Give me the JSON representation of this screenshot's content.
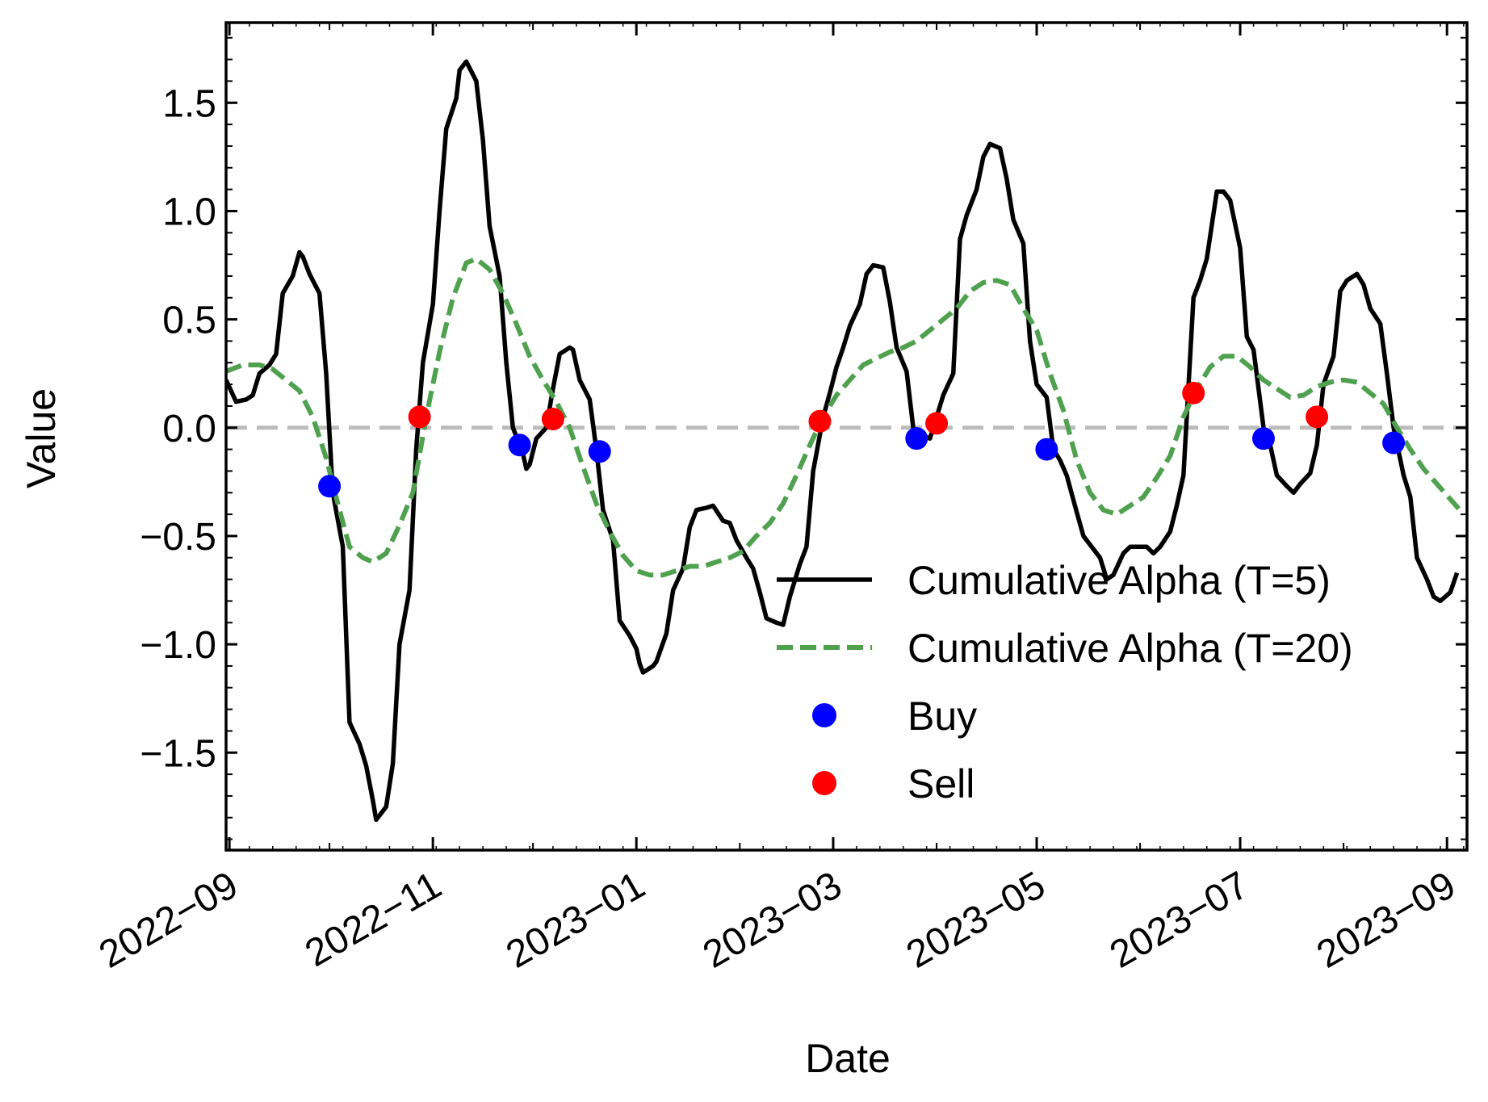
{
  "chart_data": {
    "type": "line",
    "xlabel": "Date",
    "ylabel": "Value",
    "xlim": [
      "2022-08-31",
      "2023-09-07"
    ],
    "ylim": [
      -1.95,
      1.87
    ],
    "x_ticks": [
      "2022-09",
      "2022-11",
      "2023-01",
      "2023-03",
      "2023-05",
      "2023-07",
      "2023-09"
    ],
    "y_ticks": [
      -1.5,
      -1.0,
      -0.5,
      0.0,
      0.5,
      1.0,
      1.5
    ],
    "y_tick_labels": [
      "−1.5",
      "−1.0",
      "−0.5",
      "0.0",
      "0.5",
      "1.0",
      "1.5"
    ],
    "grid": false,
    "legend_position": "lower-right",
    "reference_line": {
      "y": 0.0,
      "color": "#bbbbbb",
      "style": "dashed"
    },
    "series": [
      {
        "name": "Cumulative Alpha (T=5)",
        "color": "#000000",
        "style": "solid",
        "points": [
          [
            "2022-08-31",
            0.22
          ],
          [
            "2022-09-03",
            0.12
          ],
          [
            "2022-09-06",
            0.13
          ],
          [
            "2022-09-08",
            0.15
          ],
          [
            "2022-09-10",
            0.25
          ],
          [
            "2022-09-13",
            0.29
          ],
          [
            "2022-09-15",
            0.34
          ],
          [
            "2022-09-17",
            0.62
          ],
          [
            "2022-09-20",
            0.7
          ],
          [
            "2022-09-22",
            0.81
          ],
          [
            "2022-09-23",
            0.79
          ],
          [
            "2022-09-25",
            0.71
          ],
          [
            "2022-09-28",
            0.62
          ],
          [
            "2022-09-30",
            0.25
          ],
          [
            "2022-10-02",
            -0.3
          ],
          [
            "2022-10-05",
            -0.55
          ],
          [
            "2022-10-07",
            -1.36
          ],
          [
            "2022-10-10",
            -1.46
          ],
          [
            "2022-10-12",
            -1.56
          ],
          [
            "2022-10-14",
            -1.72
          ],
          [
            "2022-10-15",
            -1.81
          ],
          [
            "2022-10-18",
            -1.75
          ],
          [
            "2022-10-20",
            -1.55
          ],
          [
            "2022-10-22",
            -1.0
          ],
          [
            "2022-10-25",
            -0.75
          ],
          [
            "2022-10-27",
            -0.1
          ],
          [
            "2022-10-29",
            0.3
          ],
          [
            "2022-11-01",
            0.57
          ],
          [
            "2022-11-03",
            1.0
          ],
          [
            "2022-11-05",
            1.38
          ],
          [
            "2022-11-08",
            1.52
          ],
          [
            "2022-11-09",
            1.65
          ],
          [
            "2022-11-11",
            1.69
          ],
          [
            "2022-11-14",
            1.6
          ],
          [
            "2022-11-16",
            1.33
          ],
          [
            "2022-11-18",
            0.93
          ],
          [
            "2022-11-21",
            0.7
          ],
          [
            "2022-11-23",
            0.3
          ],
          [
            "2022-11-25",
            0.0
          ],
          [
            "2022-11-28",
            -0.12
          ],
          [
            "2022-11-29",
            -0.19
          ],
          [
            "2022-11-30",
            -0.17
          ],
          [
            "2022-12-02",
            -0.05
          ],
          [
            "2022-12-05",
            0.0
          ],
          [
            "2022-12-07",
            0.18
          ],
          [
            "2022-12-09",
            0.34
          ],
          [
            "2022-12-12",
            0.37
          ],
          [
            "2022-12-13",
            0.36
          ],
          [
            "2022-12-15",
            0.22
          ],
          [
            "2022-12-18",
            0.13
          ],
          [
            "2022-12-20",
            -0.1
          ],
          [
            "2022-12-22",
            -0.38
          ],
          [
            "2022-12-25",
            -0.52
          ],
          [
            "2022-12-27",
            -0.89
          ],
          [
            "2022-12-30",
            -0.96
          ],
          [
            "2023-01-01",
            -1.02
          ],
          [
            "2023-01-02",
            -1.09
          ],
          [
            "2023-01-03",
            -1.13
          ],
          [
            "2023-01-06",
            -1.1
          ],
          [
            "2023-01-07",
            -1.08
          ],
          [
            "2023-01-10",
            -0.95
          ],
          [
            "2023-01-12",
            -0.75
          ],
          [
            "2023-01-15",
            -0.65
          ],
          [
            "2023-01-17",
            -0.46
          ],
          [
            "2023-01-19",
            -0.38
          ],
          [
            "2023-01-22",
            -0.37
          ],
          [
            "2023-01-24",
            -0.36
          ],
          [
            "2023-01-27",
            -0.43
          ],
          [
            "2023-01-29",
            -0.44
          ],
          [
            "2023-01-31",
            -0.52
          ],
          [
            "2023-02-03",
            -0.6
          ],
          [
            "2023-02-05",
            -0.65
          ],
          [
            "2023-02-07",
            -0.76
          ],
          [
            "2023-02-09",
            -0.88
          ],
          [
            "2023-02-12",
            -0.9
          ],
          [
            "2023-02-14",
            -0.91
          ],
          [
            "2023-02-16",
            -0.78
          ],
          [
            "2023-02-19",
            -0.63
          ],
          [
            "2023-02-21",
            -0.55
          ],
          [
            "2023-02-23",
            -0.2
          ],
          [
            "2023-02-26",
            0.05
          ],
          [
            "2023-02-28",
            0.16
          ],
          [
            "2023-03-02",
            0.28
          ],
          [
            "2023-03-04",
            0.37
          ],
          [
            "2023-03-06",
            0.47
          ],
          [
            "2023-03-09",
            0.57
          ],
          [
            "2023-03-11",
            0.71
          ],
          [
            "2023-03-13",
            0.75
          ],
          [
            "2023-03-16",
            0.74
          ],
          [
            "2023-03-18",
            0.58
          ],
          [
            "2023-03-20",
            0.37
          ],
          [
            "2023-03-23",
            0.26
          ],
          [
            "2023-03-25",
            0.0
          ],
          [
            "2023-03-27",
            -0.03
          ],
          [
            "2023-03-30",
            -0.05
          ],
          [
            "2023-04-01",
            0.05
          ],
          [
            "2023-04-03",
            0.15
          ],
          [
            "2023-04-06",
            0.25
          ],
          [
            "2023-04-08",
            0.87
          ],
          [
            "2023-04-10",
            0.98
          ],
          [
            "2023-04-13",
            1.1
          ],
          [
            "2023-04-15",
            1.25
          ],
          [
            "2023-04-17",
            1.31
          ],
          [
            "2023-04-20",
            1.29
          ],
          [
            "2023-04-22",
            1.15
          ],
          [
            "2023-04-24",
            0.96
          ],
          [
            "2023-04-27",
            0.85
          ],
          [
            "2023-04-29",
            0.4
          ],
          [
            "2023-05-01",
            0.2
          ],
          [
            "2023-05-04",
            0.14
          ],
          [
            "2023-05-06",
            -0.1
          ],
          [
            "2023-05-08",
            -0.15
          ],
          [
            "2023-05-10",
            -0.22
          ],
          [
            "2023-05-13",
            -0.39
          ],
          [
            "2023-05-15",
            -0.5
          ],
          [
            "2023-05-17",
            -0.54
          ],
          [
            "2023-05-20",
            -0.6
          ],
          [
            "2023-05-22",
            -0.7
          ],
          [
            "2023-05-24",
            -0.68
          ],
          [
            "2023-05-27",
            -0.58
          ],
          [
            "2023-05-29",
            -0.55
          ],
          [
            "2023-05-31",
            -0.55
          ],
          [
            "2023-06-03",
            -0.55
          ],
          [
            "2023-06-05",
            -0.58
          ],
          [
            "2023-06-07",
            -0.55
          ],
          [
            "2023-06-10",
            -0.48
          ],
          [
            "2023-06-12",
            -0.36
          ],
          [
            "2023-06-14",
            -0.22
          ],
          [
            "2023-06-17",
            0.6
          ],
          [
            "2023-06-19",
            0.68
          ],
          [
            "2023-06-21",
            0.78
          ],
          [
            "2023-06-24",
            1.09
          ],
          [
            "2023-06-26",
            1.09
          ],
          [
            "2023-06-28",
            1.05
          ],
          [
            "2023-07-01",
            0.83
          ],
          [
            "2023-07-03",
            0.42
          ],
          [
            "2023-07-05",
            0.36
          ],
          [
            "2023-07-08",
            0.0
          ],
          [
            "2023-07-10",
            -0.08
          ],
          [
            "2023-07-12",
            -0.22
          ],
          [
            "2023-07-15",
            -0.27
          ],
          [
            "2023-07-17",
            -0.3
          ],
          [
            "2023-07-19",
            -0.26
          ],
          [
            "2023-07-22",
            -0.21
          ],
          [
            "2023-07-24",
            -0.08
          ],
          [
            "2023-07-26",
            0.2
          ],
          [
            "2023-07-29",
            0.33
          ],
          [
            "2023-07-31",
            0.63
          ],
          [
            "2023-08-02",
            0.68
          ],
          [
            "2023-08-05",
            0.71
          ],
          [
            "2023-08-07",
            0.66
          ],
          [
            "2023-08-09",
            0.55
          ],
          [
            "2023-08-12",
            0.48
          ],
          [
            "2023-08-14",
            0.25
          ],
          [
            "2023-08-16",
            0.0
          ],
          [
            "2023-08-19",
            -0.22
          ],
          [
            "2023-08-21",
            -0.32
          ],
          [
            "2023-08-23",
            -0.6
          ],
          [
            "2023-08-26",
            -0.7
          ],
          [
            "2023-08-28",
            -0.78
          ],
          [
            "2023-08-30",
            -0.8
          ],
          [
            "2023-09-02",
            -0.76
          ],
          [
            "2023-09-04",
            -0.67
          ]
        ]
      },
      {
        "name": "Cumulative Alpha (T=20)",
        "color": "#4fa14f",
        "style": "dashed",
        "points": [
          [
            "2022-08-31",
            0.26
          ],
          [
            "2022-09-05",
            0.29
          ],
          [
            "2022-09-10",
            0.29
          ],
          [
            "2022-09-14",
            0.27
          ],
          [
            "2022-09-18",
            0.22
          ],
          [
            "2022-09-22",
            0.17
          ],
          [
            "2022-09-26",
            0.05
          ],
          [
            "2022-09-30",
            -0.14
          ],
          [
            "2022-10-04",
            -0.38
          ],
          [
            "2022-10-07",
            -0.55
          ],
          [
            "2022-10-11",
            -0.6
          ],
          [
            "2022-10-14",
            -0.62
          ],
          [
            "2022-10-18",
            -0.58
          ],
          [
            "2022-10-22",
            -0.45
          ],
          [
            "2022-10-26",
            -0.3
          ],
          [
            "2022-10-30",
            0.05
          ],
          [
            "2022-11-03",
            0.35
          ],
          [
            "2022-11-07",
            0.6
          ],
          [
            "2022-11-11",
            0.76
          ],
          [
            "2022-11-14",
            0.78
          ],
          [
            "2022-11-18",
            0.73
          ],
          [
            "2022-11-22",
            0.62
          ],
          [
            "2022-11-26",
            0.48
          ],
          [
            "2022-11-30",
            0.33
          ],
          [
            "2022-12-04",
            0.22
          ],
          [
            "2022-12-08",
            0.12
          ],
          [
            "2022-12-12",
            0.0
          ],
          [
            "2022-12-16",
            -0.18
          ],
          [
            "2022-12-20",
            -0.35
          ],
          [
            "2022-12-24",
            -0.48
          ],
          [
            "2022-12-28",
            -0.59
          ],
          [
            "2023-01-01",
            -0.66
          ],
          [
            "2023-01-05",
            -0.68
          ],
          [
            "2023-01-09",
            -0.68
          ],
          [
            "2023-01-13",
            -0.66
          ],
          [
            "2023-01-17",
            -0.64
          ],
          [
            "2023-01-21",
            -0.64
          ],
          [
            "2023-01-25",
            -0.62
          ],
          [
            "2023-01-29",
            -0.6
          ],
          [
            "2023-02-02",
            -0.57
          ],
          [
            "2023-02-06",
            -0.5
          ],
          [
            "2023-02-10",
            -0.44
          ],
          [
            "2023-02-14",
            -0.35
          ],
          [
            "2023-02-18",
            -0.22
          ],
          [
            "2023-02-22",
            -0.08
          ],
          [
            "2023-02-26",
            0.05
          ],
          [
            "2023-03-02",
            0.15
          ],
          [
            "2023-03-06",
            0.22
          ],
          [
            "2023-03-10",
            0.29
          ],
          [
            "2023-03-14",
            0.32
          ],
          [
            "2023-03-18",
            0.35
          ],
          [
            "2023-03-22",
            0.37
          ],
          [
            "2023-03-26",
            0.4
          ],
          [
            "2023-03-30",
            0.45
          ],
          [
            "2023-04-03",
            0.5
          ],
          [
            "2023-04-07",
            0.55
          ],
          [
            "2023-04-11",
            0.63
          ],
          [
            "2023-04-15",
            0.67
          ],
          [
            "2023-04-19",
            0.68
          ],
          [
            "2023-04-23",
            0.66
          ],
          [
            "2023-04-27",
            0.55
          ],
          [
            "2023-05-01",
            0.45
          ],
          [
            "2023-05-05",
            0.25
          ],
          [
            "2023-05-09",
            0.08
          ],
          [
            "2023-05-13",
            -0.15
          ],
          [
            "2023-05-17",
            -0.3
          ],
          [
            "2023-05-21",
            -0.38
          ],
          [
            "2023-05-25",
            -0.4
          ],
          [
            "2023-05-29",
            -0.36
          ],
          [
            "2023-06-02",
            -0.32
          ],
          [
            "2023-06-06",
            -0.23
          ],
          [
            "2023-06-10",
            -0.13
          ],
          [
            "2023-06-14",
            0.05
          ],
          [
            "2023-06-18",
            0.18
          ],
          [
            "2023-06-22",
            0.28
          ],
          [
            "2023-06-26",
            0.33
          ],
          [
            "2023-06-30",
            0.33
          ],
          [
            "2023-07-04",
            0.28
          ],
          [
            "2023-07-08",
            0.22
          ],
          [
            "2023-07-12",
            0.18
          ],
          [
            "2023-07-16",
            0.14
          ],
          [
            "2023-07-20",
            0.15
          ],
          [
            "2023-07-24",
            0.19
          ],
          [
            "2023-07-28",
            0.21
          ],
          [
            "2023-08-01",
            0.22
          ],
          [
            "2023-08-05",
            0.21
          ],
          [
            "2023-08-09",
            0.16
          ],
          [
            "2023-08-13",
            0.11
          ],
          [
            "2023-08-17",
            0.0
          ],
          [
            "2023-08-21",
            -0.1
          ],
          [
            "2023-08-25",
            -0.19
          ],
          [
            "2023-08-29",
            -0.26
          ],
          [
            "2023-09-02",
            -0.33
          ],
          [
            "2023-09-06",
            -0.4
          ]
        ]
      }
    ],
    "markers": [
      {
        "name": "Buy",
        "color": "#0000ff",
        "points": [
          [
            "2022-10-01",
            -0.27
          ],
          [
            "2022-11-27",
            -0.08
          ],
          [
            "2022-12-21",
            -0.11
          ],
          [
            "2023-03-26",
            -0.05
          ],
          [
            "2023-05-04",
            -0.1
          ],
          [
            "2023-07-08",
            -0.05
          ],
          [
            "2023-08-16",
            -0.07
          ]
        ]
      },
      {
        "name": "Sell",
        "color": "#ff0000",
        "points": [
          [
            "2022-10-28",
            0.05
          ],
          [
            "2022-12-07",
            0.04
          ],
          [
            "2023-02-25",
            0.03
          ],
          [
            "2023-04-01",
            0.02
          ],
          [
            "2023-06-17",
            0.16
          ],
          [
            "2023-07-24",
            0.05
          ]
        ]
      }
    ]
  }
}
